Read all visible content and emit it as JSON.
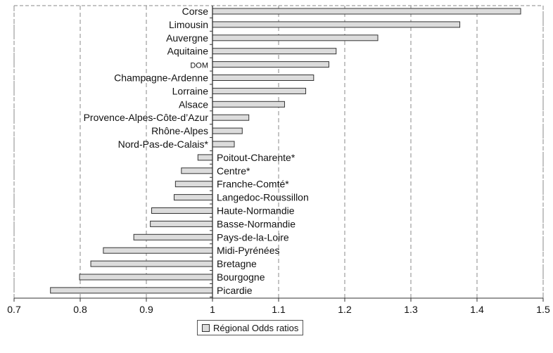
{
  "chart_data": {
    "type": "bar",
    "orientation": "horizontal",
    "baseline": 1,
    "categories": [
      "Corse",
      "Limousin",
      "Auvergne",
      "Aquitaine",
      "DOM",
      "Champagne-Ardenne",
      "Lorraine",
      "Alsace",
      "Provence-Alpes-Côte-d’Azur",
      "Rhône-Alpes",
      "Nord-Pas-de-Calais*",
      "Poitout-Charente*",
      "Centre*",
      "Franche-Comté*",
      "Langedoc-Roussillon",
      "Haute-Normandie",
      "Basse-Normandie",
      "Pays-de-la-Loire",
      "Midi-Pyrénées",
      "Bretagne",
      "Bourgogne",
      "Picardie"
    ],
    "series": [
      {
        "name": "Régional Odds ratios",
        "values": [
          1.466,
          1.374,
          1.25,
          1.187,
          1.176,
          1.153,
          1.141,
          1.109,
          1.055,
          1.045,
          1.033,
          0.978,
          0.953,
          0.944,
          0.942,
          0.908,
          0.906,
          0.881,
          0.835,
          0.816,
          0.799,
          0.755
        ]
      }
    ],
    "xlim": [
      0.7,
      1.5
    ],
    "xticks": [
      "0.7",
      "0.8",
      "0.9",
      "1",
      "1.1",
      "1.2",
      "1.3",
      "1.4",
      "1.5"
    ],
    "grid": true,
    "legend_position": "bottom",
    "colors": {
      "bar_fill": "#dcdcdc",
      "bar_stroke": "#333333",
      "grid": "#888888"
    }
  }
}
